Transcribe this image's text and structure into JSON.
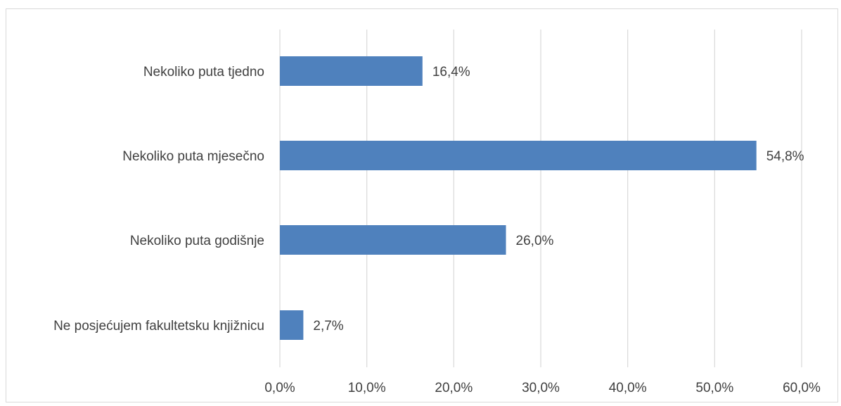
{
  "chart_data": {
    "type": "bar",
    "orientation": "horizontal",
    "categories": [
      "Nekoliko puta tjedno",
      "Nekoliko puta mjesečno",
      "Nekoliko puta godišnje",
      "Ne posjećujem fakultetsku knjižnicu"
    ],
    "values": [
      16.4,
      54.8,
      26.0,
      2.7
    ],
    "data_labels": [
      "16,4%",
      "54,8%",
      "26,0%",
      "2,7%"
    ],
    "xlim": [
      0,
      60
    ],
    "x_ticks": [
      0,
      10,
      20,
      30,
      40,
      50,
      60
    ],
    "x_tick_labels": [
      "0,0%",
      "10,0%",
      "20,0%",
      "30,0%",
      "40,0%",
      "50,0%",
      "60,0%"
    ],
    "grid": "vertical",
    "legend": "none",
    "colors": {
      "bar": "#4f81bd",
      "grid": "#d9d9d9",
      "text": "#404040"
    }
  }
}
